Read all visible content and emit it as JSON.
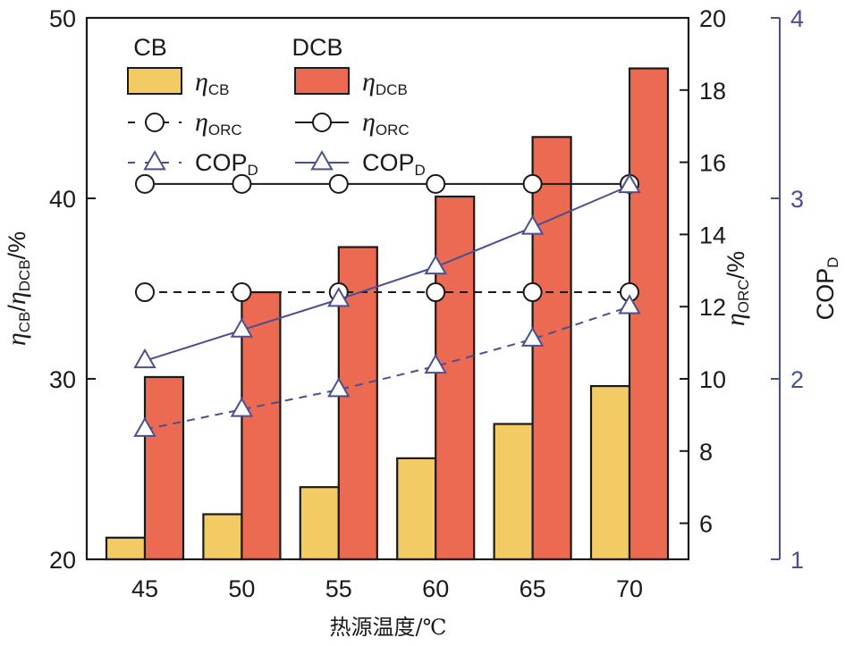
{
  "chart_data": {
    "type": "bar",
    "title": "",
    "xlabel": "热源温度/℃",
    "categories": [
      "45",
      "50",
      "55",
      "60",
      "65",
      "70"
    ],
    "axes": {
      "left": {
        "label_main": "η",
        "label_parts": [
          {
            "text": "η",
            "italic": true
          },
          {
            "text": "CB",
            "sub": true
          },
          {
            "text": "/"
          },
          {
            "text": "η",
            "italic": true
          },
          {
            "text": "DCB",
            "sub": true
          },
          {
            "text": "/%"
          }
        ],
        "ylim": [
          20,
          50
        ],
        "ticks": [
          20,
          30,
          40,
          50
        ]
      },
      "right_orc": {
        "label_parts": [
          {
            "text": "η",
            "italic": true
          },
          {
            "text": "ORC",
            "sub": true
          },
          {
            "text": "/%"
          }
        ],
        "ylim": [
          5,
          20
        ],
        "ticks": [
          6,
          8,
          10,
          12,
          14,
          16,
          18,
          20
        ]
      },
      "right_cop": {
        "label_parts": [
          {
            "text": "COP"
          },
          {
            "text": "D",
            "sub": true
          }
        ],
        "ylim": [
          1,
          4
        ],
        "ticks": [
          1,
          2,
          3,
          4
        ],
        "color": "#4a4f8f"
      }
    },
    "series": [
      {
        "name": "η_CB",
        "group": "CB",
        "kind": "bar",
        "axis": "left",
        "color": "#f2cb64",
        "values": [
          21.2,
          22.5,
          24.0,
          25.6,
          27.5,
          29.6
        ]
      },
      {
        "name": "η_DCB",
        "group": "DCB",
        "kind": "bar",
        "axis": "left",
        "color": "#ec6a52",
        "values": [
          30.1,
          34.8,
          37.3,
          40.1,
          43.4,
          47.2
        ]
      },
      {
        "name": "η_ORC (CB)",
        "group": "CB",
        "kind": "line",
        "dash": true,
        "marker": "circle",
        "axis": "right_orc",
        "color": "#1a1a1a",
        "values": [
          12.4,
          12.4,
          12.4,
          12.4,
          12.4,
          12.4
        ]
      },
      {
        "name": "η_ORC (DCB)",
        "group": "DCB",
        "kind": "line",
        "dash": false,
        "marker": "circle",
        "axis": "right_orc",
        "color": "#1a1a1a",
        "values": [
          15.4,
          15.4,
          15.4,
          15.4,
          15.4,
          15.4
        ]
      },
      {
        "name": "COP_D (CB)",
        "group": "CB",
        "kind": "line",
        "dash": true,
        "marker": "triangle",
        "axis": "right_cop",
        "color": "#4a4f8f",
        "values": [
          1.72,
          1.83,
          1.94,
          2.07,
          2.22,
          2.4
        ]
      },
      {
        "name": "COP_D (DCB)",
        "group": "DCB",
        "kind": "line",
        "dash": false,
        "marker": "triangle",
        "axis": "right_cop",
        "color": "#4a4f8f",
        "values": [
          2.1,
          2.27,
          2.44,
          2.62,
          2.84,
          3.07
        ]
      }
    ],
    "legend": {
      "placement": "top-left",
      "columns": [
        {
          "title": "CB",
          "entries": [
            {
              "series": 0,
              "label_main": "η",
              "label_sub": "CB"
            },
            {
              "series": 2,
              "label_main": "η",
              "label_sub": "ORC"
            },
            {
              "series": 4,
              "label_main": "COP",
              "label_sub": "D"
            }
          ]
        },
        {
          "title": "DCB",
          "entries": [
            {
              "series": 1,
              "label_main": "η",
              "label_sub": "DCB"
            },
            {
              "series": 3,
              "label_main": "η",
              "label_sub": "ORC"
            },
            {
              "series": 5,
              "label_main": "COP",
              "label_sub": "D"
            }
          ]
        }
      ]
    },
    "grid": false
  }
}
